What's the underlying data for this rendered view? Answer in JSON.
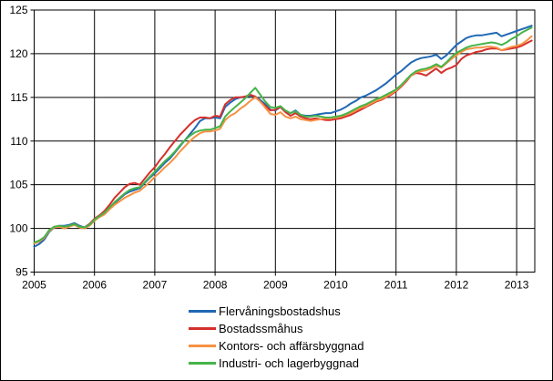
{
  "figure": {
    "background": "#ffffff",
    "border_color": "#000000",
    "grid_color": "#000000"
  },
  "chart_data": {
    "type": "line",
    "title": "",
    "xlabel": "",
    "ylabel": "",
    "x_start_year": 2005,
    "points_per_year": 12,
    "x_ticks": [
      2005,
      2006,
      2007,
      2008,
      2009,
      2010,
      2011,
      2012,
      2013
    ],
    "y_ticks": [
      95,
      100,
      105,
      110,
      115,
      120,
      125
    ],
    "ylim": [
      95,
      125
    ],
    "xlim": [
      2005,
      2013.33
    ],
    "grid": true,
    "legend_position": "bottom",
    "series": [
      {
        "name": "Flervåningsbostadshus",
        "color": "#2068B4",
        "values": [
          97.9,
          98.2,
          98.7,
          99.6,
          100.1,
          100.3,
          100.3,
          100.4,
          100.6,
          100.3,
          100.1,
          100.5,
          101.0,
          101.4,
          101.7,
          102.4,
          102.9,
          103.4,
          103.9,
          104.2,
          104.4,
          104.6,
          105.2,
          105.8,
          106.3,
          106.9,
          107.5,
          108.0,
          108.7,
          109.4,
          110.1,
          110.8,
          111.5,
          112.3,
          112.6,
          112.6,
          112.7,
          112.6,
          113.9,
          114.4,
          114.8,
          115.0,
          115.0,
          115.2,
          115.1,
          114.7,
          114.2,
          113.6,
          113.5,
          113.9,
          113.4,
          113.2,
          113.5,
          113.0,
          112.9,
          112.9,
          113.0,
          113.1,
          113.2,
          113.2,
          113.4,
          113.6,
          113.9,
          114.3,
          114.6,
          115.0,
          115.2,
          115.5,
          115.8,
          116.2,
          116.6,
          117.1,
          117.6,
          118.0,
          118.5,
          119.0,
          119.3,
          119.5,
          119.6,
          119.7,
          119.9,
          119.4,
          119.8,
          120.4,
          121.0,
          121.4,
          121.8,
          122.0,
          122.1,
          122.1,
          122.2,
          122.3,
          122.4,
          122.0,
          122.2,
          122.4,
          122.6,
          122.8,
          123.0,
          123.2
        ]
      },
      {
        "name": "Bostadssmåhus",
        "color": "#D5302C",
        "values": [
          98.3,
          98.5,
          98.9,
          99.8,
          100.2,
          100.2,
          100.1,
          100.3,
          100.5,
          100.2,
          100.1,
          100.5,
          101.1,
          101.5,
          102.0,
          102.7,
          103.5,
          104.1,
          104.7,
          105.1,
          105.2,
          105.0,
          105.7,
          106.4,
          107.0,
          107.8,
          108.5,
          109.3,
          110.0,
          110.7,
          111.3,
          111.9,
          112.4,
          112.7,
          112.7,
          112.6,
          112.9,
          112.8,
          114.2,
          114.7,
          115.0,
          115.0,
          115.1,
          115.3,
          115.1,
          114.5,
          114.0,
          113.5,
          113.6,
          113.9,
          113.3,
          112.9,
          113.2,
          112.8,
          112.6,
          112.5,
          112.6,
          112.5,
          112.4,
          112.4,
          112.5,
          112.6,
          112.8,
          113.0,
          113.3,
          113.6,
          113.9,
          114.2,
          114.5,
          114.7,
          115.0,
          115.3,
          115.7,
          116.2,
          116.8,
          117.5,
          117.8,
          117.7,
          117.5,
          117.9,
          118.3,
          117.8,
          118.2,
          118.4,
          118.7,
          119.4,
          119.8,
          120.0,
          120.2,
          120.3,
          120.5,
          120.6,
          120.6,
          120.4,
          120.5,
          120.6,
          120.7,
          120.9,
          121.2,
          121.5
        ]
      },
      {
        "name": "Kontors- och affärsbyggnad",
        "color": "#F79143",
        "values": [
          98.3,
          98.5,
          98.9,
          99.7,
          100.1,
          100.2,
          100.0,
          100.2,
          100.4,
          100.1,
          100.0,
          100.3,
          100.9,
          101.3,
          101.6,
          102.2,
          102.7,
          103.1,
          103.5,
          103.8,
          104.1,
          104.3,
          104.8,
          105.3,
          105.9,
          106.4,
          107.0,
          107.5,
          108.1,
          108.8,
          109.4,
          110.0,
          110.5,
          110.9,
          111.1,
          111.1,
          111.2,
          111.4,
          112.4,
          112.9,
          113.2,
          113.7,
          114.1,
          114.6,
          115.0,
          114.5,
          113.8,
          113.1,
          113.0,
          113.3,
          112.8,
          112.6,
          112.8,
          112.5,
          112.4,
          112.3,
          112.4,
          112.5,
          112.6,
          112.6,
          112.7,
          112.8,
          113.0,
          113.2,
          113.5,
          113.8,
          114.0,
          114.3,
          114.6,
          114.8,
          115.1,
          115.4,
          115.8,
          116.3,
          116.9,
          117.5,
          117.9,
          118.0,
          118.1,
          118.3,
          118.6,
          118.4,
          118.9,
          119.4,
          119.8,
          120.2,
          120.5,
          120.6,
          120.7,
          120.7,
          120.8,
          120.8,
          120.7,
          120.4,
          120.6,
          120.8,
          120.9,
          121.1,
          121.5,
          122.0
        ]
      },
      {
        "name": "Industri- och lagerbyggnad",
        "color": "#46B449",
        "values": [
          98.4,
          98.6,
          99.0,
          99.8,
          100.2,
          100.3,
          100.2,
          100.3,
          100.5,
          100.2,
          100.1,
          100.4,
          101.0,
          101.4,
          101.8,
          102.4,
          103.0,
          103.5,
          104.0,
          104.4,
          104.6,
          104.7,
          105.3,
          105.9,
          106.5,
          107.1,
          107.7,
          108.2,
          108.8,
          109.5,
          110.1,
          110.6,
          111.0,
          111.2,
          111.3,
          111.3,
          111.5,
          111.7,
          112.8,
          113.4,
          113.9,
          114.4,
          114.9,
          115.5,
          116.1,
          115.3,
          114.5,
          113.9,
          113.8,
          114.0,
          113.5,
          113.2,
          113.4,
          113.0,
          112.8,
          112.8,
          112.9,
          112.8,
          112.7,
          112.7,
          112.8,
          112.9,
          113.1,
          113.4,
          113.7,
          114.0,
          114.2,
          114.5,
          114.8,
          115.0,
          115.3,
          115.6,
          115.9,
          116.4,
          117.0,
          117.6,
          118.0,
          118.2,
          118.3,
          118.5,
          118.8,
          118.5,
          119.0,
          119.6,
          120.1,
          120.4,
          120.7,
          120.9,
          121.0,
          121.1,
          121.2,
          121.3,
          121.2,
          121.0,
          121.3,
          121.7,
          122.0,
          122.4,
          122.7,
          123.0
        ]
      }
    ]
  }
}
